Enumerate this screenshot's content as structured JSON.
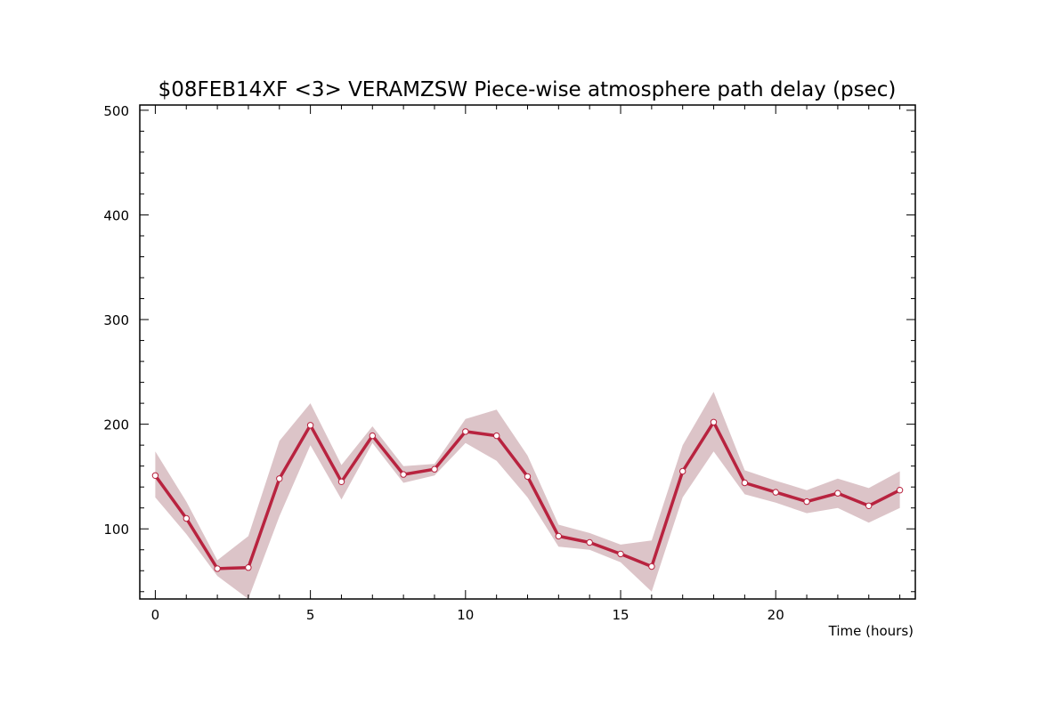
{
  "chart_data": {
    "type": "line",
    "title": "$08FEB14XF <3>  VERAMZSW  Piece-wise atmosphere path delay (psec)",
    "xlabel": "Time (hours)",
    "ylabel": "",
    "xlim": [
      -0.5,
      24.5
    ],
    "ylim": [
      33,
      505
    ],
    "x_major_ticks": [
      0,
      5,
      10,
      15,
      20
    ],
    "x_tick_labels": [
      "0",
      "5",
      "10",
      "15",
      "20"
    ],
    "y_major_ticks": [
      100,
      200,
      300,
      400,
      500
    ],
    "y_tick_labels": [
      "100",
      "200",
      "300",
      "400",
      "500"
    ],
    "grid": false,
    "colors": {
      "line": "#b8233f",
      "band": "#dcc4c8",
      "marker_fill": "#ffffff"
    },
    "series": [
      {
        "x": [
          0,
          1,
          2,
          3,
          4,
          5,
          6,
          7,
          8,
          9,
          10,
          11,
          12,
          13,
          14,
          15,
          16,
          17,
          18,
          19,
          20,
          21,
          22,
          23,
          24
        ],
        "values": [
          151,
          110,
          62,
          63,
          148,
          199,
          145,
          189,
          152,
          157,
          193,
          189,
          150,
          93,
          87,
          76,
          64,
          155,
          202,
          144,
          135,
          126,
          134,
          122,
          137
        ],
        "upper": [
          174,
          126,
          70,
          93,
          184,
          220,
          161,
          198,
          160,
          162,
          205,
          214,
          170,
          104,
          96,
          85,
          89,
          180,
          231,
          156,
          146,
          137,
          148,
          139,
          155
        ],
        "lower": [
          130,
          95,
          55,
          33,
          112,
          180,
          128,
          182,
          144,
          151,
          182,
          165,
          130,
          83,
          80,
          68,
          40,
          130,
          174,
          133,
          125,
          115,
          120,
          106,
          120
        ]
      }
    ]
  }
}
